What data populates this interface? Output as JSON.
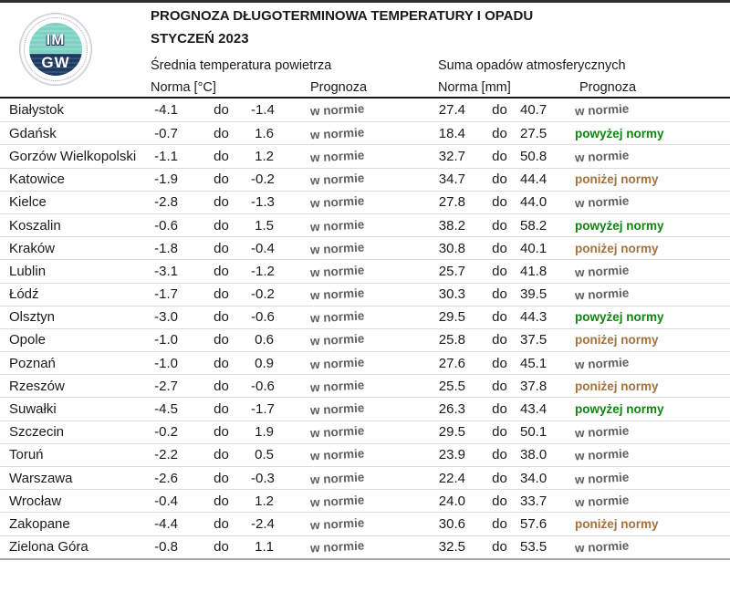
{
  "header": {
    "title": "PROGNOZA DŁUGOTERMINOWA TEMPERATURY I OPADU",
    "subtitle": "STYCZEŃ 2023",
    "logo": {
      "top_text": "IM",
      "bottom_text": "GW"
    }
  },
  "columns": {
    "temp_section": "Średnia temperatura powietrza",
    "precip_section": "Suma opadów atmosferycznych",
    "temp_norm": "Norma [°C]",
    "temp_forecast": "Prognoza",
    "precip_norm": "Norma [mm]",
    "precip_forecast": "Prognoza",
    "range_separator": "do"
  },
  "status_colors": {
    "w normie": "#606060",
    "powyżej normy": "#128212",
    "poniżej normy": "#a5713d"
  },
  "rows": [
    {
      "city": "Białystok",
      "temp_min": "-4.1",
      "temp_max": "-1.4",
      "temp_forecast": "w normie",
      "precip_min": "27.4",
      "precip_max": "40.7",
      "precip_forecast": "w normie"
    },
    {
      "city": "Gdańsk",
      "temp_min": "-0.7",
      "temp_max": "1.6",
      "temp_forecast": "w normie",
      "precip_min": "18.4",
      "precip_max": "27.5",
      "precip_forecast": "powyżej normy"
    },
    {
      "city": "Gorzów Wielkopolski",
      "temp_min": "-1.1",
      "temp_max": "1.2",
      "temp_forecast": "w normie",
      "precip_min": "32.7",
      "precip_max": "50.8",
      "precip_forecast": "w normie"
    },
    {
      "city": "Katowice",
      "temp_min": "-1.9",
      "temp_max": "-0.2",
      "temp_forecast": "w normie",
      "precip_min": "34.7",
      "precip_max": "44.4",
      "precip_forecast": "poniżej normy"
    },
    {
      "city": "Kielce",
      "temp_min": "-2.8",
      "temp_max": "-1.3",
      "temp_forecast": "w normie",
      "precip_min": "27.8",
      "precip_max": "44.0",
      "precip_forecast": "w normie"
    },
    {
      "city": "Koszalin",
      "temp_min": "-0.6",
      "temp_max": "1.5",
      "temp_forecast": "w normie",
      "precip_min": "38.2",
      "precip_max": "58.2",
      "precip_forecast": "powyżej normy"
    },
    {
      "city": "Kraków",
      "temp_min": "-1.8",
      "temp_max": "-0.4",
      "temp_forecast": "w normie",
      "precip_min": "30.8",
      "precip_max": "40.1",
      "precip_forecast": "poniżej normy"
    },
    {
      "city": "Lublin",
      "temp_min": "-3.1",
      "temp_max": "-1.2",
      "temp_forecast": "w normie",
      "precip_min": "25.7",
      "precip_max": "41.8",
      "precip_forecast": "w normie"
    },
    {
      "city": "Łódź",
      "temp_min": "-1.7",
      "temp_max": "-0.2",
      "temp_forecast": "w normie",
      "precip_min": "30.3",
      "precip_max": "39.5",
      "precip_forecast": "w normie"
    },
    {
      "city": "Olsztyn",
      "temp_min": "-3.0",
      "temp_max": "-0.6",
      "temp_forecast": "w normie",
      "precip_min": "29.5",
      "precip_max": "44.3",
      "precip_forecast": "powyżej normy"
    },
    {
      "city": "Opole",
      "temp_min": "-1.0",
      "temp_max": "0.6",
      "temp_forecast": "w normie",
      "precip_min": "25.8",
      "precip_max": "37.5",
      "precip_forecast": "poniżej normy"
    },
    {
      "city": "Poznań",
      "temp_min": "-1.0",
      "temp_max": "0.9",
      "temp_forecast": "w normie",
      "precip_min": "27.6",
      "precip_max": "45.1",
      "precip_forecast": "w normie"
    },
    {
      "city": "Rzeszów",
      "temp_min": "-2.7",
      "temp_max": "-0.6",
      "temp_forecast": "w normie",
      "precip_min": "25.5",
      "precip_max": "37.8",
      "precip_forecast": "poniżej normy"
    },
    {
      "city": "Suwałki",
      "temp_min": "-4.5",
      "temp_max": "-1.7",
      "temp_forecast": "w normie",
      "precip_min": "26.3",
      "precip_max": "43.4",
      "precip_forecast": "powyżej normy"
    },
    {
      "city": "Szczecin",
      "temp_min": "-0.2",
      "temp_max": "1.9",
      "temp_forecast": "w normie",
      "precip_min": "29.5",
      "precip_max": "50.1",
      "precip_forecast": "w normie"
    },
    {
      "city": "Toruń",
      "temp_min": "-2.2",
      "temp_max": "0.5",
      "temp_forecast": "w normie",
      "precip_min": "23.9",
      "precip_max": "38.0",
      "precip_forecast": "w normie"
    },
    {
      "city": "Warszawa",
      "temp_min": "-2.6",
      "temp_max": "-0.3",
      "temp_forecast": "w normie",
      "precip_min": "22.4",
      "precip_max": "34.0",
      "precip_forecast": "w normie"
    },
    {
      "city": "Wrocław",
      "temp_min": "-0.4",
      "temp_max": "1.2",
      "temp_forecast": "w normie",
      "precip_min": "24.0",
      "precip_max": "33.7",
      "precip_forecast": "w normie"
    },
    {
      "city": "Zakopane",
      "temp_min": "-4.4",
      "temp_max": "-2.4",
      "temp_forecast": "w normie",
      "precip_min": "30.6",
      "precip_max": "57.6",
      "precip_forecast": "poniżej normy"
    },
    {
      "city": "Zielona Góra",
      "temp_min": "-0.8",
      "temp_max": "1.1",
      "temp_forecast": "w normie",
      "precip_min": "32.5",
      "precip_max": "53.5",
      "precip_forecast": "w normie"
    }
  ]
}
